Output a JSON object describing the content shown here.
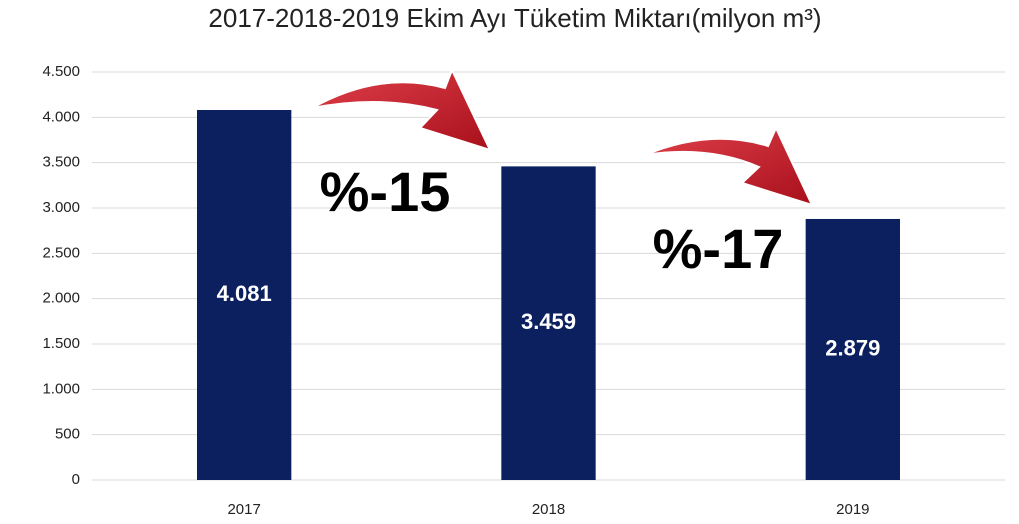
{
  "chart_data": {
    "type": "bar",
    "title": "2017-2018-2019 Ekim Ayı Tüketim Miktarı(milyon m³)",
    "categories": [
      "2017",
      "2018",
      "2019"
    ],
    "values": [
      4081,
      3459,
      2879
    ],
    "value_labels": [
      "4.081",
      "3.459",
      "2.879"
    ],
    "color": "#0c2060",
    "ylim": [
      0,
      4500
    ],
    "yticks": [
      0,
      500,
      {
        "value": 1000,
        "label": "1.000"
      },
      {
        "value": 1500,
        "label": "1.500"
      },
      {
        "value": 2000,
        "label": "2.000"
      },
      {
        "value": 2500,
        "label": "2.500"
      },
      {
        "value": 3000,
        "label": "3.000"
      },
      {
        "value": 3500,
        "label": "3.500"
      },
      {
        "value": 4000,
        "label": "4.000"
      },
      {
        "value": 4500,
        "label": "4.500"
      }
    ],
    "grid": true,
    "annotations": [
      "%-15",
      "%-17"
    ]
  }
}
